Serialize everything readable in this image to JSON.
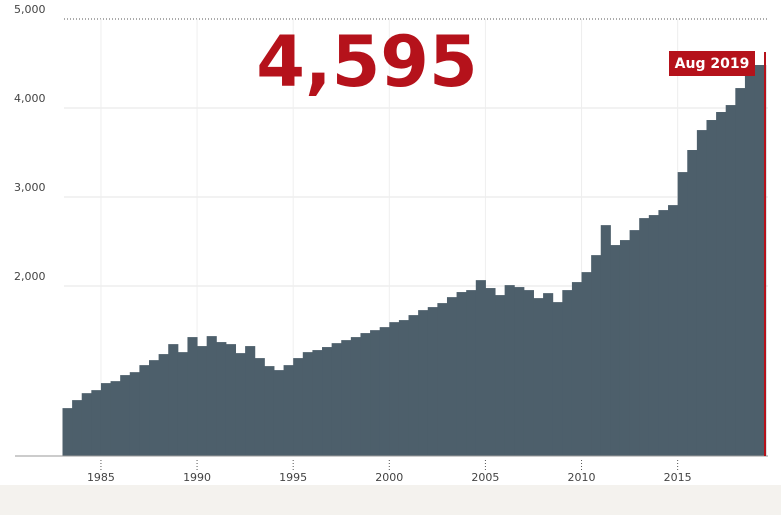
{
  "chart_data": {
    "type": "step-area",
    "headline": "4,595",
    "end_label": "Aug 2019",
    "color": "#4d5f6b",
    "accent": "#b5121b",
    "x": [
      1983.0,
      1983.5,
      1984.0,
      1984.5,
      1985.0,
      1985.5,
      1986.0,
      1986.5,
      1987.0,
      1987.5,
      1988.0,
      1988.5,
      1989.0,
      1989.5,
      1990.0,
      1990.5,
      1991.0,
      1991.5,
      1992.0,
      1992.5,
      1993.0,
      1993.5,
      1994.0,
      1994.5,
      1995.0,
      1995.5,
      1996.0,
      1996.5,
      1997.0,
      1997.5,
      1998.0,
      1998.5,
      1999.0,
      1999.5,
      2000.0,
      2000.5,
      2001.0,
      2001.5,
      2002.0,
      2002.5,
      2003.0,
      2003.5,
      2004.0,
      2004.5,
      2005.0,
      2005.5,
      2006.0,
      2006.5,
      2007.0,
      2007.5,
      2008.0,
      2008.5,
      2009.0,
      2009.5,
      2010.0,
      2010.5,
      2011.0,
      2011.5,
      2012.0,
      2012.5,
      2013.0,
      2013.5,
      2014.0,
      2014.5,
      2015.0,
      2015.5,
      2016.0,
      2016.5,
      2017.0,
      2017.5,
      2018.0,
      2018.5,
      2019.0,
      2019.58
    ],
    "values": [
      628,
      718,
      796,
      830,
      909,
      931,
      999,
      1032,
      1111,
      1167,
      1235,
      1347,
      1257,
      1426,
      1325,
      1437,
      1370,
      1347,
      1246,
      1325,
      1190,
      1100,
      1055,
      1111,
      1190,
      1257,
      1280,
      1314,
      1358,
      1392,
      1426,
      1471,
      1504,
      1538,
      1594,
      1617,
      1673,
      1729,
      1763,
      1808,
      1875,
      1932,
      1954,
      2066,
      1977,
      1898,
      2010,
      1988,
      1954,
      1864,
      1920,
      1819,
      1954,
      2044,
      2156,
      2347,
      2684,
      2460,
      2516,
      2628,
      2763,
      2797,
      2853,
      2909,
      3280,
      3528,
      3752,
      3865,
      3955,
      4033,
      4224,
      4371,
      4483,
      4595
    ],
    "xlim": [
      1983,
      2019.7
    ],
    "ylim": [
      90,
      5000
    ],
    "xticks": [
      1985,
      1990,
      1995,
      2000,
      2005,
      2010,
      2015
    ],
    "yticks": [
      {
        "value": 2000,
        "label": "2,000"
      },
      {
        "value": 3000,
        "label": "3,000"
      },
      {
        "value": 4000,
        "label": "4,000"
      },
      {
        "value": 5000,
        "label": "5,000"
      }
    ],
    "grid": true
  }
}
